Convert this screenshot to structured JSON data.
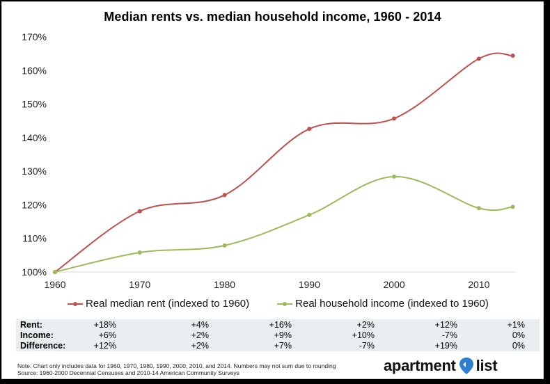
{
  "chart_data": {
    "type": "line",
    "title": "Median rents vs. median household income, 1960 - 2014",
    "x": [
      1960,
      1970,
      1980,
      1990,
      2000,
      2010,
      2014
    ],
    "x_tick_labels": [
      "1960",
      "1970",
      "1980",
      "1990",
      "2000",
      "2010"
    ],
    "ylim": [
      100,
      170
    ],
    "y_tick_values": [
      100,
      110,
      120,
      130,
      140,
      150,
      160,
      170
    ],
    "y_tick_labels": [
      "100%",
      "110%",
      "120%",
      "130%",
      "140%",
      "150%",
      "160%",
      "170%"
    ],
    "xlabel": "",
    "ylabel": "",
    "grid": false,
    "legend_position": "bottom",
    "series": [
      {
        "name": "Real median rent (indexed to 1960)",
        "color": "#c0504d",
        "values": [
          100,
          118.1,
          122.9,
          142.6,
          145.7,
          163.5,
          164.4
        ]
      },
      {
        "name": "Real household income (indexed to 1960)",
        "color": "#9bbb59",
        "values": [
          100,
          105.8,
          107.9,
          117.0,
          128.4,
          119.0,
          119.4
        ]
      }
    ]
  },
  "table": {
    "row_labels": [
      "Rent:",
      "Income:",
      "Difference:"
    ],
    "rent": [
      "+18%",
      "+4%",
      "+16%",
      "+2%",
      "+12%",
      "+1%"
    ],
    "income": [
      "+6%",
      "+2%",
      "+9%",
      "+10%",
      "-7%",
      "0%"
    ],
    "difference": [
      "+12%",
      "+2%",
      "+7%",
      "-7%",
      "+19%",
      "0%"
    ]
  },
  "note": {
    "line1": "Note: Chart only includes data for 1960, 1970, 1980, 1990, 2000, 2010, and 2014. Numbers may not sum due to rounding",
    "line2": "Source: 1960-2000 Decennial Censuses and 2010-14 American Community Surveys"
  },
  "logo": {
    "word1": "apartment",
    "word2": "list",
    "pin_color": "#2e7fd3"
  }
}
